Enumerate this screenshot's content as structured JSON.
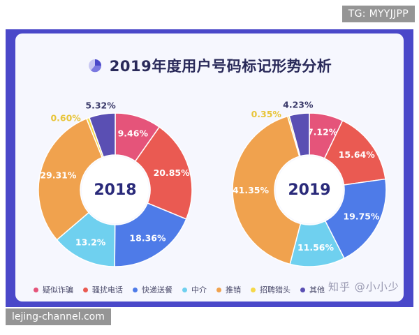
{
  "watermark_tg": "TG: MYYJJPP",
  "watermark_site": "lejing-channel.com",
  "watermark_zhihu": "知乎 @小小少",
  "colors": {
    "frame": "#4a48c9",
    "panel": "#f6f7fe",
    "疑似诈骗": "#e5547a",
    "骚扰电话": "#ea5a52",
    "快递送餐": "#4e7be8",
    "中介": "#6fd0ef",
    "推销": "#f0a24e",
    "招聘猎头": "#f5d84a",
    "其他": "#5a4fb3"
  },
  "chart_data": {
    "type": "pie",
    "title": "2019年度用户号码标记形势分析",
    "legend_position": "bottom",
    "categories": [
      "疑似诈骗",
      "骚扰电话",
      "快递送餐",
      "中介",
      "推销",
      "招聘猎头",
      "其他"
    ],
    "legend_labels": [
      "疑似诈骗",
      "骚扰电话",
      "快递送餐",
      "中介",
      "推销",
      "招聘猎头",
      "其他"
    ],
    "series": [
      {
        "name": "2018",
        "values": [
          9.46,
          20.85,
          18.36,
          13.2,
          29.31,
          0.6,
          5.32
        ],
        "labels": [
          "9.46%",
          "20.85%",
          "18.36%",
          "13.2%",
          "29.31%",
          "0.60%",
          "5.32%"
        ]
      },
      {
        "name": "2019",
        "values": [
          7.12,
          15.64,
          19.75,
          11.56,
          41.35,
          0.35,
          4.23
        ],
        "labels": [
          "7.12%",
          "15.64%",
          "19.75%",
          "11.56%",
          "41.35%",
          "0.35%",
          "4.23%"
        ]
      }
    ]
  }
}
